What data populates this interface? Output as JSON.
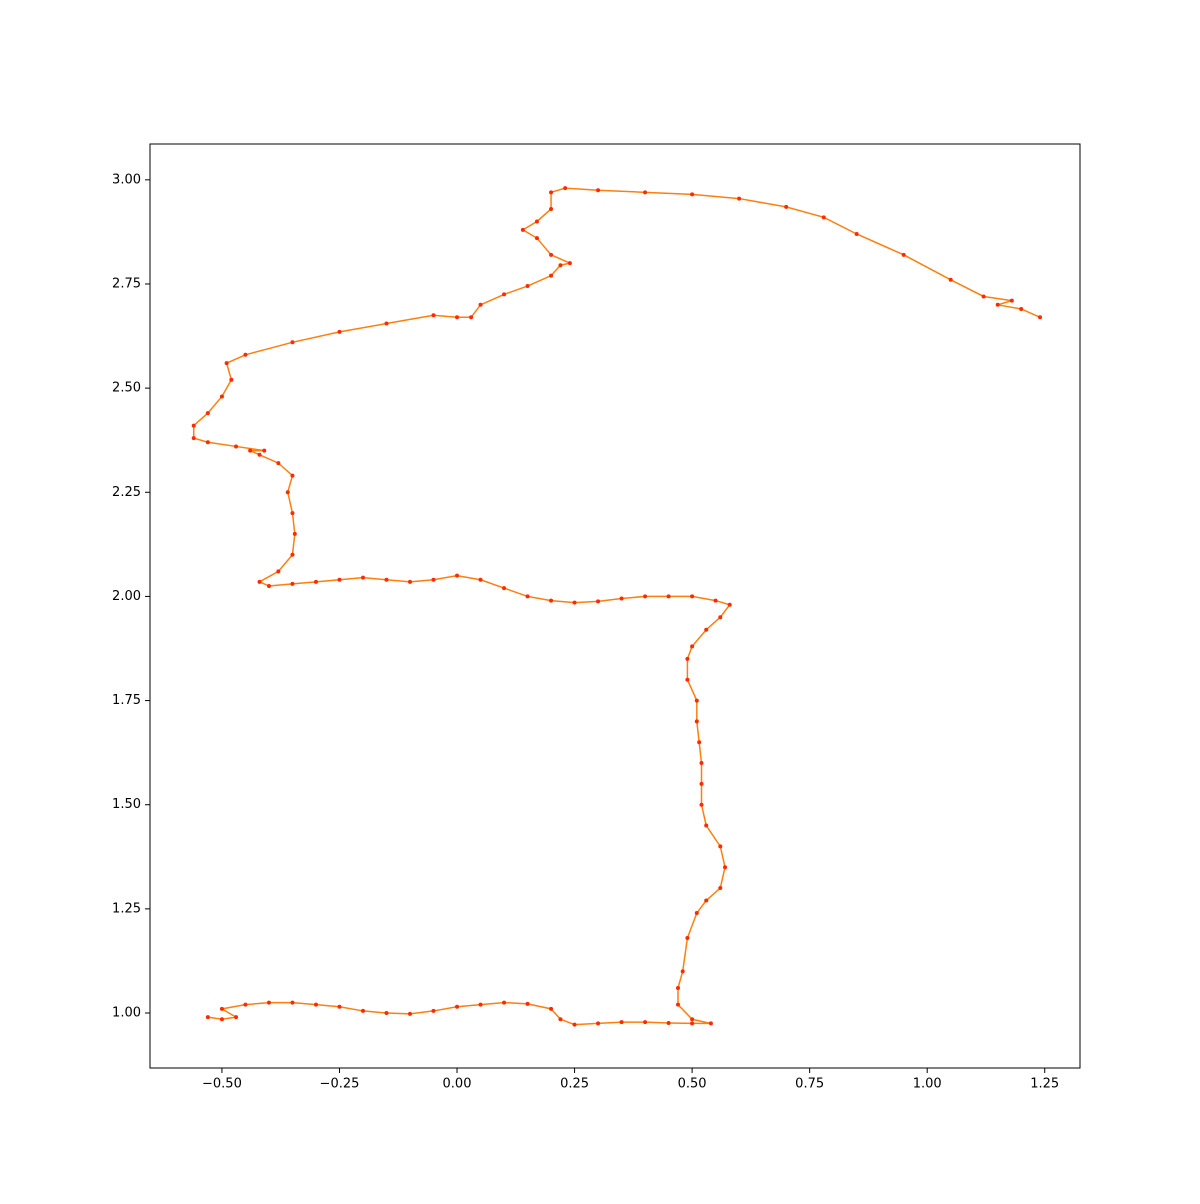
{
  "chart_data": {
    "type": "line",
    "x": [
      -0.53,
      -0.5,
      -0.47,
      -0.5,
      -0.45,
      -0.4,
      -0.35,
      -0.3,
      -0.25,
      -0.2,
      -0.15,
      -0.1,
      -0.05,
      0.0,
      0.05,
      0.1,
      0.15,
      0.2,
      0.22,
      0.25,
      0.3,
      0.35,
      0.4,
      0.45,
      0.5,
      0.54,
      0.5,
      0.47,
      0.47,
      0.48,
      0.49,
      0.51,
      0.53,
      0.56,
      0.57,
      0.56,
      0.53,
      0.52,
      0.52,
      0.52,
      0.515,
      0.51,
      0.51,
      0.49,
      0.49,
      0.5,
      0.53,
      0.56,
      0.58,
      0.55,
      0.5,
      0.45,
      0.4,
      0.35,
      0.3,
      0.25,
      0.2,
      0.15,
      0.1,
      0.05,
      0.0,
      -0.05,
      -0.1,
      -0.15,
      -0.2,
      -0.25,
      -0.3,
      -0.35,
      -0.4,
      -0.42,
      -0.38,
      -0.35,
      -0.345,
      -0.35,
      -0.36,
      -0.35,
      -0.38,
      -0.42,
      -0.44,
      -0.41,
      -0.47,
      -0.53,
      -0.56,
      -0.56,
      -0.53,
      -0.5,
      -0.48,
      -0.49,
      -0.45,
      -0.35,
      -0.25,
      -0.15,
      -0.05,
      0.0,
      0.03,
      0.05,
      0.1,
      0.15,
      0.2,
      0.22,
      0.24,
      0.2,
      0.17,
      0.14,
      0.17,
      0.2,
      0.2,
      0.23,
      0.3,
      0.4,
      0.5,
      0.6,
      0.7,
      0.78,
      0.85,
      0.95,
      1.05,
      1.12,
      1.18,
      1.15,
      1.2,
      1.24
    ],
    "series": [
      {
        "color": "#ff7f0e",
        "marker_color": "#ff2a00",
        "values": [
          0.99,
          0.985,
          0.99,
          1.01,
          1.02,
          1.025,
          1.025,
          1.02,
          1.015,
          1.005,
          1.0,
          0.998,
          1.005,
          1.015,
          1.02,
          1.025,
          1.022,
          1.01,
          0.985,
          0.972,
          0.975,
          0.978,
          0.978,
          0.976,
          0.975,
          0.975,
          0.985,
          1.02,
          1.06,
          1.1,
          1.18,
          1.24,
          1.27,
          1.3,
          1.35,
          1.4,
          1.45,
          1.5,
          1.55,
          1.6,
          1.65,
          1.7,
          1.75,
          1.8,
          1.85,
          1.88,
          1.92,
          1.95,
          1.98,
          1.99,
          2.0,
          2.0,
          2.0,
          1.995,
          1.988,
          1.985,
          1.99,
          2.0,
          2.02,
          2.04,
          2.05,
          2.04,
          2.035,
          2.04,
          2.045,
          2.04,
          2.035,
          2.03,
          2.025,
          2.035,
          2.06,
          2.1,
          2.15,
          2.2,
          2.25,
          2.29,
          2.32,
          2.34,
          2.35,
          2.35,
          2.36,
          2.37,
          2.38,
          2.41,
          2.44,
          2.48,
          2.52,
          2.56,
          2.58,
          2.61,
          2.635,
          2.655,
          2.675,
          2.67,
          2.67,
          2.7,
          2.725,
          2.745,
          2.77,
          2.795,
          2.8,
          2.82,
          2.86,
          2.88,
          2.9,
          2.93,
          2.97,
          2.98,
          2.975,
          2.97,
          2.965,
          2.955,
          2.935,
          2.91,
          2.87,
          2.82,
          2.76,
          2.72,
          2.71,
          2.7,
          2.69,
          2.67
        ]
      }
    ],
    "xlim": [
      -0.653,
      1.325
    ],
    "ylim": [
      0.868,
      3.086
    ],
    "xticks": [
      {
        "value": -0.5,
        "label": "−0.50"
      },
      {
        "value": -0.25,
        "label": "−0.25"
      },
      {
        "value": 0,
        "label": "0.00"
      },
      {
        "value": 0.25,
        "label": "0.25"
      },
      {
        "value": 0.5,
        "label": "0.50"
      },
      {
        "value": 0.75,
        "label": "0.75"
      },
      {
        "value": 1,
        "label": "1.00"
      },
      {
        "value": 1.25,
        "label": "1.25"
      }
    ],
    "yticks": [
      {
        "value": 1,
        "label": "1.00"
      },
      {
        "value": 1.25,
        "label": "1.25"
      },
      {
        "value": 1.5,
        "label": "1.50"
      },
      {
        "value": 1.75,
        "label": "1.75"
      },
      {
        "value": 2,
        "label": "2.00"
      },
      {
        "value": 2.25,
        "label": "2.25"
      },
      {
        "value": 2.5,
        "label": "2.50"
      },
      {
        "value": 2.75,
        "label": "2.75"
      },
      {
        "value": 3,
        "label": "3.00"
      }
    ]
  }
}
